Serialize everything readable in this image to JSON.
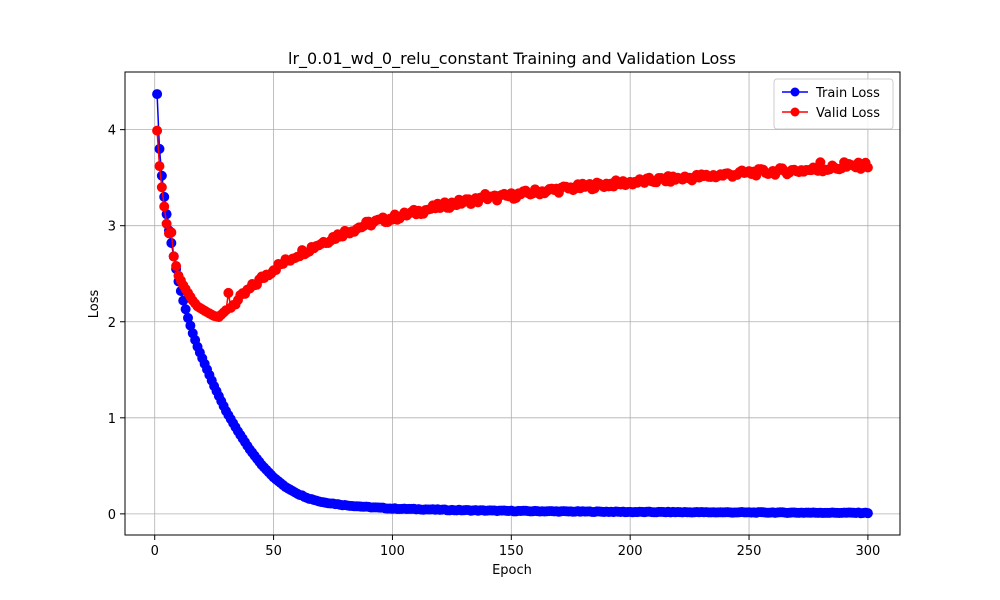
{
  "chart_data": {
    "type": "line",
    "title": "lr_0.01_wd_0_relu_constant Training and Validation Loss",
    "xlabel": "Epoch",
    "ylabel": "Loss",
    "xlim": [
      -12.5,
      313.5
    ],
    "ylim": [
      -0.22,
      4.6
    ],
    "xticks": [
      0,
      50,
      100,
      150,
      200,
      250,
      300
    ],
    "yticks": [
      0,
      1,
      2,
      3,
      4
    ],
    "grid": true,
    "legend_position": "top-right",
    "marker": "circle",
    "series": [
      {
        "name": "Train Loss",
        "color": "#0000ff",
        "key_points": [
          [
            1,
            4.37
          ],
          [
            2,
            3.8
          ],
          [
            3,
            3.52
          ],
          [
            4,
            3.3
          ],
          [
            5,
            3.12
          ],
          [
            6,
            2.95
          ],
          [
            7,
            2.82
          ],
          [
            8,
            2.68
          ],
          [
            9,
            2.55
          ],
          [
            10,
            2.42
          ],
          [
            12,
            2.22
          ],
          [
            14,
            2.04
          ],
          [
            16,
            1.88
          ],
          [
            18,
            1.74
          ],
          [
            20,
            1.62
          ],
          [
            25,
            1.33
          ],
          [
            30,
            1.07
          ],
          [
            35,
            0.86
          ],
          [
            40,
            0.67
          ],
          [
            45,
            0.51
          ],
          [
            50,
            0.38
          ],
          [
            55,
            0.28
          ],
          [
            60,
            0.21
          ],
          [
            65,
            0.16
          ],
          [
            70,
            0.125
          ],
          [
            80,
            0.09
          ],
          [
            90,
            0.07
          ],
          [
            100,
            0.055
          ],
          [
            125,
            0.04
          ],
          [
            150,
            0.03
          ],
          [
            200,
            0.02
          ],
          [
            250,
            0.015
          ],
          [
            300,
            0.01
          ]
        ]
      },
      {
        "name": "Valid Loss",
        "color": "#ff0000",
        "key_points": [
          [
            1,
            3.99
          ],
          [
            2,
            3.62
          ],
          [
            3,
            3.4
          ],
          [
            4,
            3.2
          ],
          [
            5,
            3.02
          ],
          [
            6,
            2.92
          ],
          [
            7,
            2.93
          ],
          [
            8,
            2.68
          ],
          [
            9,
            2.58
          ],
          [
            10,
            2.48
          ],
          [
            12,
            2.38
          ],
          [
            14,
            2.3
          ],
          [
            16,
            2.22
          ],
          [
            18,
            2.16
          ],
          [
            20,
            2.13
          ],
          [
            22,
            2.1
          ],
          [
            25,
            2.06
          ],
          [
            27,
            2.05
          ],
          [
            30,
            2.12
          ],
          [
            35,
            2.22
          ],
          [
            40,
            2.34
          ],
          [
            45,
            2.45
          ],
          [
            50,
            2.55
          ],
          [
            60,
            2.7
          ],
          [
            70,
            2.82
          ],
          [
            80,
            2.93
          ],
          [
            90,
            3.02
          ],
          [
            100,
            3.08
          ],
          [
            110,
            3.14
          ],
          [
            120,
            3.2
          ],
          [
            130,
            3.25
          ],
          [
            140,
            3.28
          ],
          [
            150,
            3.31
          ],
          [
            160,
            3.35
          ],
          [
            175,
            3.39
          ],
          [
            190,
            3.43
          ],
          [
            200,
            3.45
          ],
          [
            225,
            3.5
          ],
          [
            250,
            3.55
          ],
          [
            275,
            3.58
          ],
          [
            300,
            3.63
          ]
        ],
        "annotations": [
          [
            31,
            2.3
          ],
          [
            139,
            3.33
          ],
          [
            280,
            3.66
          ],
          [
            290,
            3.66
          ]
        ]
      }
    ]
  }
}
